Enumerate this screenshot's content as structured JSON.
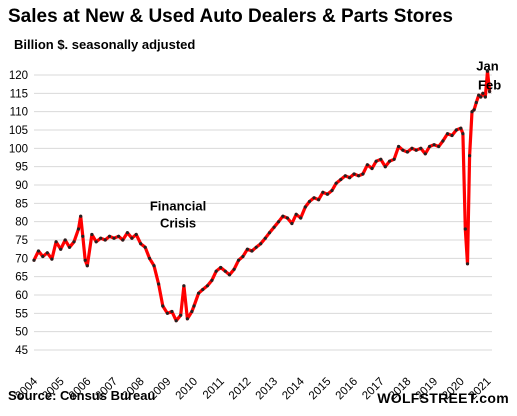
{
  "header": {
    "title": "Sales at New & Used Auto Dealers & Parts Stores",
    "subtitle": "Billion $. seasonally adjusted"
  },
  "footer": {
    "source": "Source: Census Bureau",
    "brand": "WOLFSTREET.com"
  },
  "colors": {
    "line": "#ff0000",
    "markers": "#222222",
    "grid": "#d9d9d9"
  },
  "chart_data": {
    "type": "line",
    "title": "Sales at New & Used Auto Dealers & Parts Stores",
    "subtitle": "Billion $. seasonally adjusted",
    "xlabel": "",
    "ylabel": "",
    "ylim": [
      45,
      120
    ],
    "xlim": [
      2004.0,
      2021.17
    ],
    "yticks": [
      45,
      50,
      55,
      60,
      65,
      70,
      75,
      80,
      85,
      90,
      95,
      100,
      105,
      110,
      115,
      120
    ],
    "xticks": [
      "2004",
      "2005",
      "2006",
      "2007",
      "2008",
      "2009",
      "2010",
      "2011",
      "2012",
      "2013",
      "2014",
      "2015",
      "2016",
      "2017",
      "2018",
      "2019",
      "2020",
      "2021"
    ],
    "grid": "horizontal",
    "legend": "none",
    "annotations": [
      {
        "lines": [
          "Financial",
          "Crisis"
        ],
        "x": 2009.4,
        "y": 83
      },
      {
        "lines": [
          "Jan"
        ],
        "x": 2021.0,
        "y": 121.2
      },
      {
        "lines": [
          "Feb"
        ],
        "x": 2021.08,
        "y": 116
      }
    ],
    "series": [
      {
        "values": [
          [
            2004.0,
            69.5
          ],
          [
            2004.17,
            72.0
          ],
          [
            2004.33,
            70.5
          ],
          [
            2004.5,
            71.5
          ],
          [
            2004.67,
            69.8
          ],
          [
            2004.83,
            74.5
          ],
          [
            2005.0,
            72.5
          ],
          [
            2005.17,
            75.0
          ],
          [
            2005.33,
            73.0
          ],
          [
            2005.5,
            74.5
          ],
          [
            2005.67,
            78.0
          ],
          [
            2005.75,
            81.5
          ],
          [
            2005.83,
            76.0
          ],
          [
            2005.92,
            69.5
          ],
          [
            2006.0,
            68.0
          ],
          [
            2006.17,
            76.5
          ],
          [
            2006.33,
            74.5
          ],
          [
            2006.5,
            75.5
          ],
          [
            2006.67,
            75.0
          ],
          [
            2006.83,
            76.0
          ],
          [
            2007.0,
            75.5
          ],
          [
            2007.17,
            76.0
          ],
          [
            2007.33,
            75.0
          ],
          [
            2007.5,
            77.0
          ],
          [
            2007.67,
            75.5
          ],
          [
            2007.83,
            76.5
          ],
          [
            2008.0,
            74.0
          ],
          [
            2008.17,
            73.0
          ],
          [
            2008.33,
            70.0
          ],
          [
            2008.5,
            68.0
          ],
          [
            2008.67,
            63.0
          ],
          [
            2008.83,
            57.0
          ],
          [
            2009.0,
            55.0
          ],
          [
            2009.17,
            55.5
          ],
          [
            2009.33,
            53.0
          ],
          [
            2009.5,
            54.5
          ],
          [
            2009.62,
            62.5
          ],
          [
            2009.75,
            53.5
          ],
          [
            2009.92,
            55.5
          ],
          [
            2010.0,
            57.0
          ],
          [
            2010.17,
            60.5
          ],
          [
            2010.33,
            61.5
          ],
          [
            2010.5,
            62.5
          ],
          [
            2010.67,
            64.0
          ],
          [
            2010.83,
            66.5
          ],
          [
            2011.0,
            67.5
          ],
          [
            2011.17,
            66.5
          ],
          [
            2011.33,
            65.5
          ],
          [
            2011.5,
            67.0
          ],
          [
            2011.67,
            69.5
          ],
          [
            2011.83,
            70.5
          ],
          [
            2012.0,
            72.5
          ],
          [
            2012.17,
            72.0
          ],
          [
            2012.33,
            73.0
          ],
          [
            2012.5,
            74.0
          ],
          [
            2012.67,
            75.5
          ],
          [
            2012.83,
            77.0
          ],
          [
            2013.0,
            78.5
          ],
          [
            2013.17,
            80.0
          ],
          [
            2013.33,
            81.5
          ],
          [
            2013.5,
            81.0
          ],
          [
            2013.67,
            79.5
          ],
          [
            2013.83,
            82.0
          ],
          [
            2014.0,
            81.0
          ],
          [
            2014.17,
            84.0
          ],
          [
            2014.33,
            85.5
          ],
          [
            2014.5,
            86.5
          ],
          [
            2014.67,
            86.0
          ],
          [
            2014.83,
            88.0
          ],
          [
            2015.0,
            87.5
          ],
          [
            2015.17,
            88.5
          ],
          [
            2015.33,
            90.5
          ],
          [
            2015.5,
            91.5
          ],
          [
            2015.67,
            92.5
          ],
          [
            2015.83,
            92.0
          ],
          [
            2016.0,
            93.0
          ],
          [
            2016.17,
            92.5
          ],
          [
            2016.33,
            93.0
          ],
          [
            2016.5,
            95.5
          ],
          [
            2016.67,
            94.5
          ],
          [
            2016.83,
            96.5
          ],
          [
            2017.0,
            97.0
          ],
          [
            2017.17,
            95.0
          ],
          [
            2017.33,
            96.5
          ],
          [
            2017.5,
            97.0
          ],
          [
            2017.67,
            100.5
          ],
          [
            2017.83,
            99.5
          ],
          [
            2018.0,
            99.0
          ],
          [
            2018.17,
            100.0
          ],
          [
            2018.33,
            99.5
          ],
          [
            2018.5,
            100.0
          ],
          [
            2018.67,
            98.5
          ],
          [
            2018.83,
            100.5
          ],
          [
            2019.0,
            101.0
          ],
          [
            2019.17,
            100.5
          ],
          [
            2019.33,
            102.0
          ],
          [
            2019.5,
            104.0
          ],
          [
            2019.67,
            103.5
          ],
          [
            2019.83,
            105.0
          ],
          [
            2020.0,
            105.5
          ],
          [
            2020.08,
            104.0
          ],
          [
            2020.17,
            78.0
          ],
          [
            2020.25,
            68.5
          ],
          [
            2020.33,
            98.0
          ],
          [
            2020.42,
            110.0
          ],
          [
            2020.5,
            110.5
          ],
          [
            2020.58,
            112.5
          ],
          [
            2020.67,
            114.5
          ],
          [
            2020.75,
            114.0
          ],
          [
            2020.83,
            115.0
          ],
          [
            2020.92,
            114.0
          ],
          [
            2021.0,
            121.0
          ],
          [
            2021.08,
            115.5
          ]
        ]
      }
    ]
  }
}
